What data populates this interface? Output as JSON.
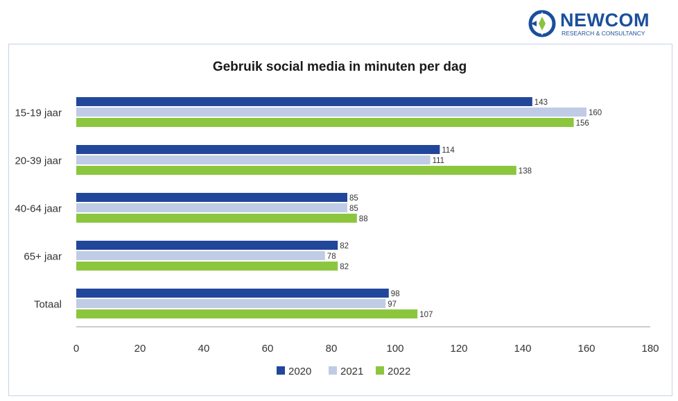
{
  "logo": {
    "name": "NEWCOM",
    "tagline": "RESEARCH & CONSULTANCY",
    "icon": "newcom-logo-icon",
    "colors": {
      "primary": "#1a4f9c",
      "accent": "#8cc43c"
    }
  },
  "chart_data": {
    "type": "bar",
    "orientation": "horizontal",
    "title": "Gebruik social media in minuten per dag",
    "xlabel": "",
    "ylabel": "",
    "categories": [
      "15-19 jaar",
      "20-39 jaar",
      "40-64 jaar",
      "65+ jaar",
      "Totaal"
    ],
    "series": [
      {
        "name": "2020",
        "color": "#22479a",
        "values": [
          143,
          114,
          85,
          82,
          98
        ]
      },
      {
        "name": "2021",
        "color": "#c0cce5",
        "values": [
          160,
          111,
          85,
          78,
          97
        ]
      },
      {
        "name": "2022",
        "color": "#8cc63f",
        "values": [
          156,
          138,
          88,
          82,
          107
        ]
      }
    ],
    "xlim": [
      0,
      180
    ],
    "xticks": [
      0,
      20,
      40,
      60,
      80,
      100,
      120,
      140,
      160,
      180
    ],
    "legend": "bottom-center",
    "grid": false,
    "data_labels": true
  }
}
